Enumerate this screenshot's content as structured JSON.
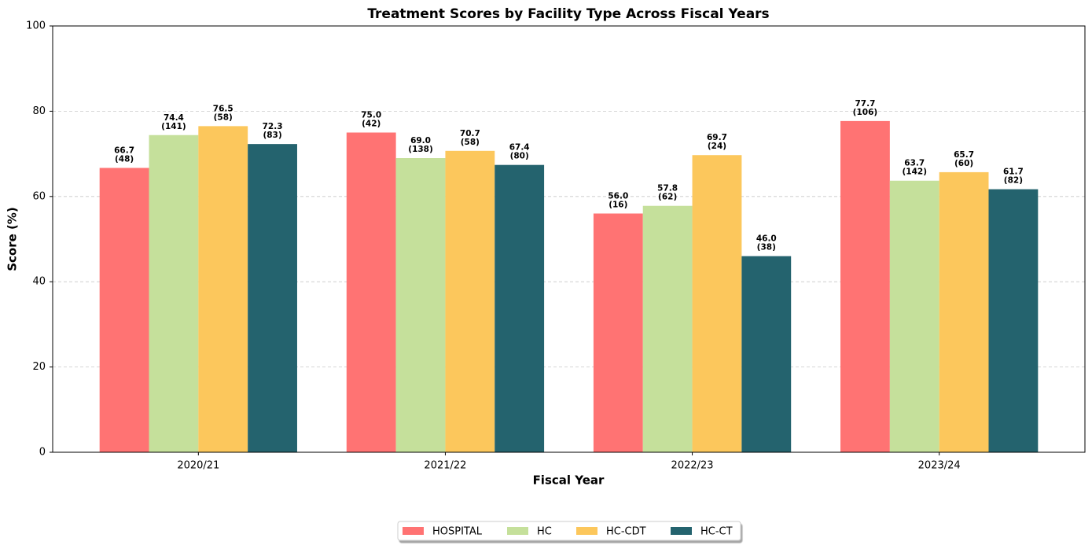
{
  "chart_data": {
    "type": "bar",
    "title": "Treatment Scores by Facility Type Across Fiscal Years",
    "x_label": "Fiscal Year",
    "y_label": "Score (%)",
    "categories": [
      "2020/21",
      "2021/22",
      "2022/23",
      "2023/24"
    ],
    "series": [
      {
        "name": "HOSPITAL",
        "color": "#ff7373",
        "values": [
          66.7,
          75.0,
          56.0,
          77.7
        ],
        "value_labels": [
          "66.7",
          "75.0",
          "56.0",
          "77.7"
        ],
        "count_labels": [
          "(48)",
          "(42)",
          "(16)",
          "(106)"
        ]
      },
      {
        "name": "HC",
        "color": "#c5e09b",
        "values": [
          74.4,
          69.0,
          57.8,
          63.7
        ],
        "value_labels": [
          "74.4",
          "69.0",
          "57.8",
          "63.7"
        ],
        "count_labels": [
          "(141)",
          "(138)",
          "(62)",
          "(142)"
        ]
      },
      {
        "name": "HC-CDT",
        "color": "#fcc75c",
        "values": [
          76.5,
          70.7,
          69.7,
          65.7
        ],
        "value_labels": [
          "76.5",
          "70.7",
          "69.7",
          "65.7"
        ],
        "count_labels": [
          "(58)",
          "(58)",
          "(24)",
          "(60)"
        ]
      },
      {
        "name": "HC-CT",
        "color": "#24636e",
        "values": [
          72.3,
          67.4,
          46.0,
          61.7
        ],
        "value_labels": [
          "72.3",
          "67.4",
          "46.0",
          "61.7"
        ],
        "count_labels": [
          "(83)",
          "(80)",
          "(38)",
          "(82)"
        ]
      }
    ],
    "ylim": [
      0,
      100
    ],
    "yticks": [
      0,
      20,
      40,
      60,
      80,
      100
    ],
    "grid": true,
    "legend": "bottom"
  }
}
